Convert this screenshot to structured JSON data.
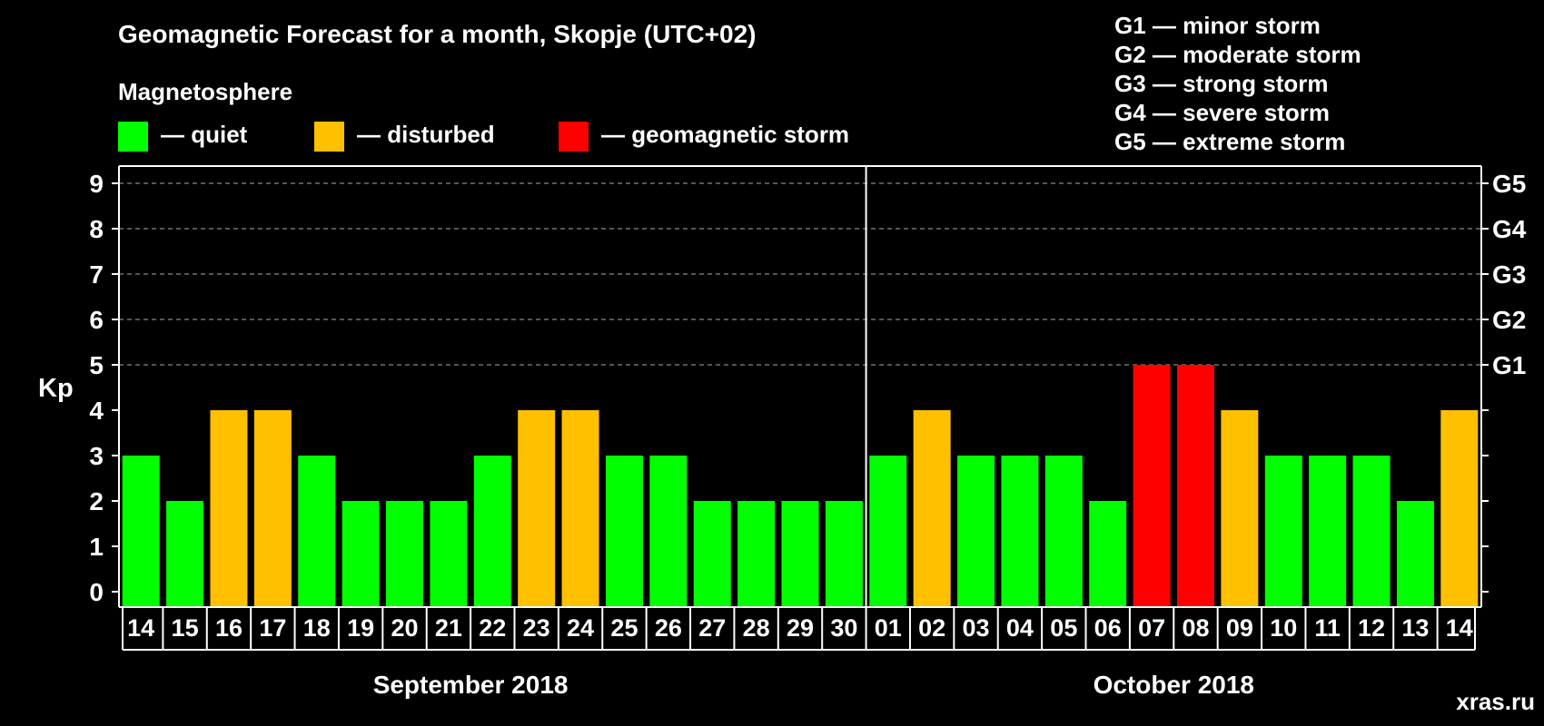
{
  "chart_data": {
    "type": "bar",
    "title": "Geomagnetic Forecast for a month, Skopje (UTC+02)",
    "legend_heading": "Magnetosphere",
    "legend": [
      {
        "key": "quiet",
        "label": "— quiet",
        "color": "#00ff00"
      },
      {
        "key": "disturbed",
        "label": "— disturbed",
        "color": "#ffc000"
      },
      {
        "key": "storm",
        "label": "— geomagnetic storm",
        "color": "#ff0000"
      }
    ],
    "storm_scale": [
      "G1 — minor storm",
      "G2 — moderate storm",
      "G3 — strong storm",
      "G4 — severe storm",
      "G5 — extreme storm"
    ],
    "ylabel": "Kp",
    "ylim": [
      0,
      9
    ],
    "yticks": [
      "0",
      "1",
      "2",
      "3",
      "4",
      "5",
      "6",
      "7",
      "8",
      "9"
    ],
    "right_axis_labels": [
      {
        "kp": 5,
        "label": "G1"
      },
      {
        "kp": 6,
        "label": "G2"
      },
      {
        "kp": 7,
        "label": "G3"
      },
      {
        "kp": 8,
        "label": "G4"
      },
      {
        "kp": 9,
        "label": "G5"
      }
    ],
    "gridlines_at": [
      5,
      6,
      7,
      8,
      9
    ],
    "categories": [
      "14",
      "15",
      "16",
      "17",
      "18",
      "19",
      "20",
      "21",
      "22",
      "23",
      "24",
      "25",
      "26",
      "27",
      "28",
      "29",
      "30",
      "01",
      "02",
      "03",
      "04",
      "05",
      "06",
      "07",
      "08",
      "09",
      "10",
      "11",
      "12",
      "13",
      "14"
    ],
    "values": [
      3,
      2,
      4,
      4,
      3,
      2,
      2,
      2,
      3,
      4,
      4,
      3,
      3,
      2,
      2,
      2,
      2,
      3,
      4,
      3,
      3,
      3,
      2,
      5,
      5,
      4,
      3,
      3,
      3,
      2,
      4
    ],
    "months": [
      {
        "label": "September 2018",
        "days": 17
      },
      {
        "label": "October 2018",
        "days": 14
      }
    ],
    "colors": {
      "background": "#000000",
      "foreground": "#ffffff",
      "grid": "#888888",
      "watermark": "#5a5a5a"
    }
  },
  "watermark": "xras.ru"
}
